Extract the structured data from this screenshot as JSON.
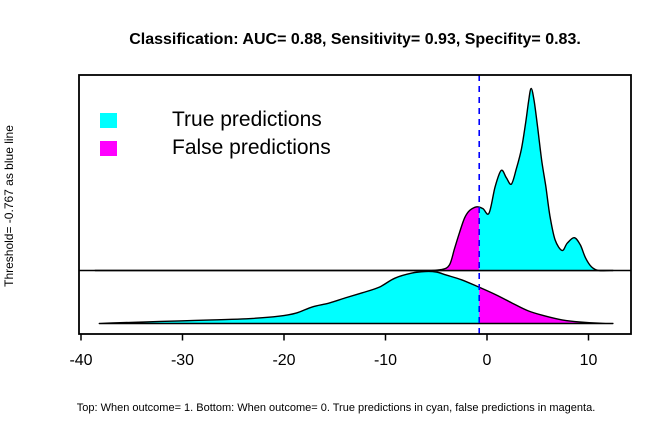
{
  "chart_data": {
    "type": "area",
    "title": "Classification: AUC= 0.88, Sensitivity= 0.93, Specifity= 0.83.",
    "ylabel": "Threshold= -0.767 as blue line",
    "caption": "Top: When outcome= 1. Bottom: When outcome= 0. True predictions in cyan, false predictions in magenta.",
    "xlabel": "",
    "xlim": [
      -40.2,
      14.2
    ],
    "x_ticks": [
      -40,
      -30,
      -20,
      -10,
      0,
      10
    ],
    "grid": false,
    "legend_position": "top-left",
    "threshold": -0.767,
    "threshold_line": {
      "color": "#0000FF",
      "style": "dashed"
    },
    "colors": {
      "true_predictions": "#00FFFF",
      "false_predictions": "#FF00FF",
      "outline": "#000000"
    },
    "legend": {
      "items": [
        {
          "label": "True predictions",
          "color": "#00FFFF"
        },
        {
          "label": "False predictions",
          "color": "#FF00FF"
        }
      ]
    },
    "series": [
      {
        "name": "outcome-1-density",
        "panel": "top",
        "meaning": "score density when outcome= 1; height relative to top panel max",
        "fill_below_threshold": "#FF00FF",
        "fill_above_threshold": "#00FFFF",
        "points": [
          [
            -38.6,
            0
          ],
          [
            -20,
            0
          ],
          [
            -10,
            0
          ],
          [
            -6.0,
            0
          ],
          [
            -4.5,
            0.005
          ],
          [
            -3.7,
            0.03
          ],
          [
            -3.2,
            0.12
          ],
          [
            -2.7,
            0.21
          ],
          [
            -2.2,
            0.29
          ],
          [
            -1.7,
            0.33
          ],
          [
            -1.0,
            0.35
          ],
          [
            -0.4,
            0.34
          ],
          [
            0.2,
            0.315
          ],
          [
            0.8,
            0.46
          ],
          [
            1.4,
            0.55
          ],
          [
            1.9,
            0.51
          ],
          [
            2.4,
            0.475
          ],
          [
            2.9,
            0.56
          ],
          [
            3.4,
            0.67
          ],
          [
            3.8,
            0.81
          ],
          [
            4.1,
            0.93
          ],
          [
            4.35,
            1.0
          ],
          [
            4.65,
            0.93
          ],
          [
            5.0,
            0.78
          ],
          [
            5.4,
            0.6
          ],
          [
            5.8,
            0.46
          ],
          [
            6.2,
            0.3
          ],
          [
            6.7,
            0.17
          ],
          [
            7.4,
            0.11
          ],
          [
            7.9,
            0.15
          ],
          [
            8.6,
            0.18
          ],
          [
            9.2,
            0.14
          ],
          [
            9.7,
            0.07
          ],
          [
            10.3,
            0.02
          ],
          [
            11.0,
            0
          ],
          [
            12.4,
            0
          ]
        ]
      },
      {
        "name": "outcome-0-density",
        "panel": "bottom",
        "meaning": "score density when outcome= 0; height relative to bottom panel max",
        "fill_below_threshold": "#00FFFF",
        "fill_above_threshold": "#FF00FF",
        "points": [
          [
            -38.2,
            0
          ],
          [
            -36.9,
            0.01
          ],
          [
            -33.6,
            0.03
          ],
          [
            -30.3,
            0.05
          ],
          [
            -27.1,
            0.07
          ],
          [
            -23.7,
            0.09
          ],
          [
            -20.5,
            0.14
          ],
          [
            -18.8,
            0.2
          ],
          [
            -17.2,
            0.32
          ],
          [
            -15.6,
            0.39
          ],
          [
            -14.0,
            0.49
          ],
          [
            -12.3,
            0.59
          ],
          [
            -10.6,
            0.7
          ],
          [
            -9.1,
            0.87
          ],
          [
            -7.4,
            0.97
          ],
          [
            -6.1,
            1.0
          ],
          [
            -5.0,
            0.99
          ],
          [
            -4.0,
            0.93
          ],
          [
            -2.5,
            0.84
          ],
          [
            -0.8,
            0.7
          ],
          [
            0.9,
            0.55
          ],
          [
            2.5,
            0.39
          ],
          [
            4.1,
            0.24
          ],
          [
            5.8,
            0.14
          ],
          [
            7.4,
            0.07
          ],
          [
            9.1,
            0.03
          ],
          [
            11.1,
            0.005
          ],
          [
            12.4,
            0
          ]
        ]
      }
    ]
  }
}
